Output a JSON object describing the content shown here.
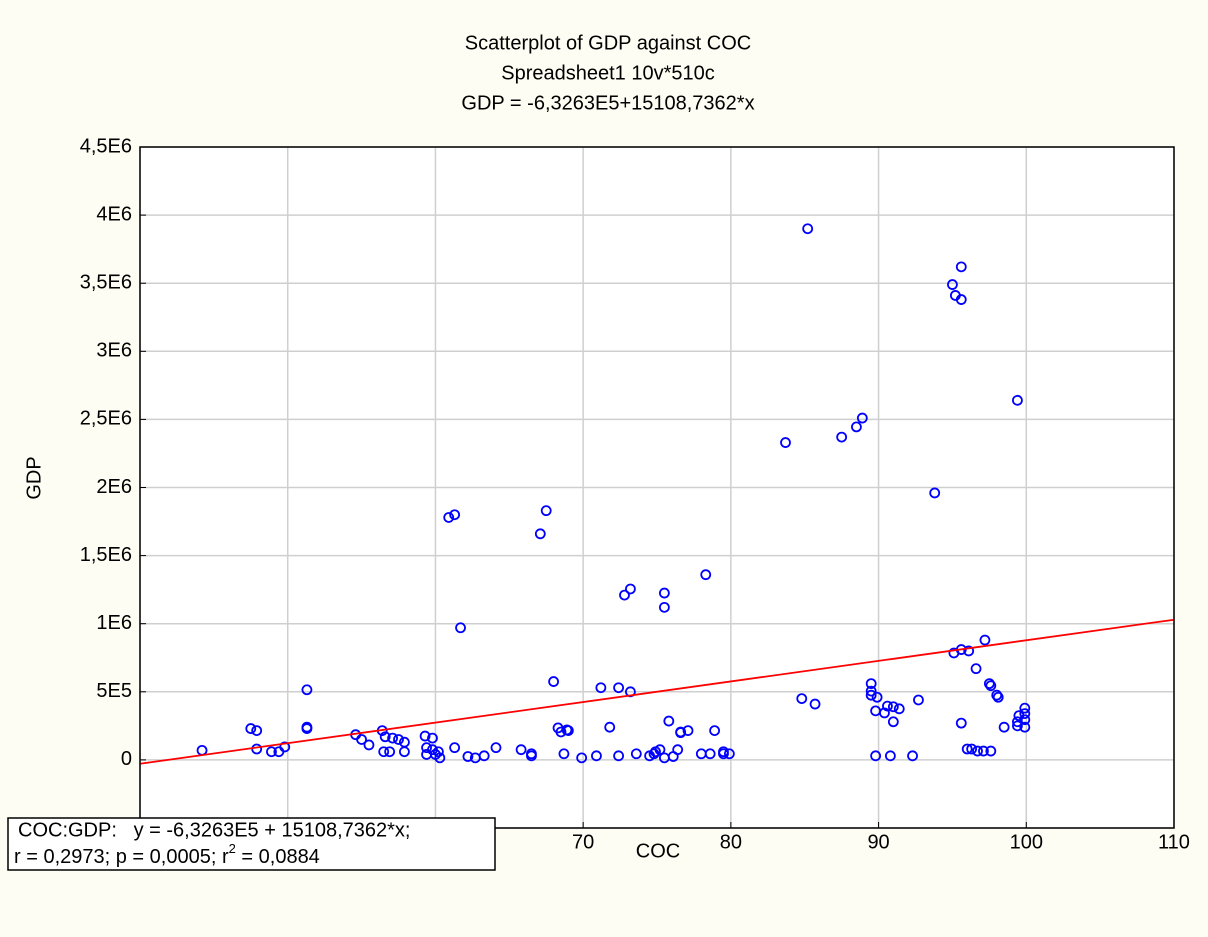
{
  "chart_data": {
    "type": "scatter",
    "title": "Scatterplot of GDP against COC",
    "subtitle": "Spreadsheet1 10v*510c",
    "equation": "GDP = -6,3263E5+15108,7362*x",
    "x_label": "COC",
    "y_label": "GDP",
    "color": "#0000ff",
    "fit": {
      "intercept": -632630,
      "slope": 15108.7362,
      "color": "#ff0000"
    },
    "stats_box": {
      "line1": "COC:GDP:   y = -6,3263E5 + 15108,7362*x;",
      "line2": [
        "r = 0,2973; p = 0,0005; r",
        "2",
        " = 0,0884"
      ]
    },
    "grid": true,
    "xlim": [
      40,
      110
    ],
    "xticks": [
      40,
      50,
      60,
      70,
      80,
      90,
      100,
      110
    ],
    "ylim": [
      -500000,
      4500000
    ],
    "yticks": [
      {
        "value": -500000,
        "label": "-5E5"
      },
      0,
      {
        "value": 500000,
        "label": "5E5"
      },
      {
        "value": 1000000,
        "label": "1E6"
      },
      {
        "value": 1500000,
        "label": "1,5E6"
      },
      {
        "value": 2000000,
        "label": "2E6"
      },
      {
        "value": 2500000,
        "label": "2,5E6"
      },
      {
        "value": 3000000,
        "label": "3E6"
      },
      {
        "value": 3500000,
        "label": "3,5E6"
      },
      {
        "value": 4000000,
        "label": "4E6"
      },
      {
        "value": 4500000,
        "label": "4,5E6"
      }
    ],
    "x": [
      44.2,
      47.5,
      47.9,
      47.9,
      48.9,
      49.4,
      49.8,
      51.3,
      51.3,
      51.3,
      54.6,
      55.0,
      55.5,
      56.4,
      56.6,
      56.5,
      56.9,
      57.1,
      57.5,
      57.9,
      57.9,
      59.3,
      59.8,
      59.4,
      59.8,
      59.4,
      60.0,
      60.2,
      60.3,
      60.9,
      61.3,
      61.7,
      61.3,
      62.2,
      62.7,
      63.3,
      64.1,
      65.8,
      66.5,
      66.5,
      67.1,
      67.5,
      68.0,
      68.3,
      68.5,
      68.9,
      69.0,
      68.7,
      69.9,
      70.9,
      71.2,
      71.8,
      72.4,
      72.4,
      72.8,
      73.2,
      73.2,
      73.6,
      74.5,
      74.8,
      74.9,
      75.2,
      75.5,
      75.5,
      75.5,
      75.8,
      76.1,
      76.4,
      76.6,
      76.6,
      77.1,
      78.3,
      78.0,
      78.6,
      78.9,
      79.5,
      79.5,
      79.9,
      83.7,
      84.8,
      85.2,
      85.7,
      87.5,
      88.5,
      88.9,
      89.5,
      89.5,
      89.5,
      89.9,
      89.8,
      89.8,
      90.4,
      90.6,
      91.0,
      91.0,
      90.8,
      91.4,
      92.3,
      92.7,
      93.8,
      95.0,
      95.2,
      95.6,
      95.6,
      95.1,
      95.6,
      96.1,
      95.6,
      96.0,
      96.3,
      96.6,
      96.7,
      97.1,
      97.2,
      97.6,
      97.5,
      97.6,
      98.0,
      98.1,
      98.5,
      99.4,
      99.5,
      99.4,
      99.4,
      99.9,
      99.9,
      99.9,
      99.9
    ],
    "values": [
      70000,
      230000,
      215000,
      80000,
      60000,
      60000,
      95000,
      515000,
      240000,
      230000,
      185000,
      150000,
      110000,
      215000,
      170000,
      60000,
      60000,
      160000,
      150000,
      130000,
      60000,
      175000,
      160000,
      90000,
      75000,
      40000,
      40000,
      60000,
      15000,
      1780000,
      1800000,
      970000,
      90000,
      25000,
      15000,
      30000,
      90000,
      75000,
      45000,
      30000,
      1660000,
      1830000,
      575000,
      235000,
      205000,
      220000,
      215000,
      45000,
      15000,
      30000,
      530000,
      240000,
      530000,
      30000,
      1210000,
      1255000,
      500000,
      45000,
      30000,
      45000,
      60000,
      75000,
      15000,
      1225000,
      1120000,
      285000,
      25000,
      75000,
      200000,
      205000,
      215000,
      1360000,
      45000,
      45000,
      215000,
      60000,
      45000,
      45000,
      2330000,
      450000,
      3900000,
      410000,
      2370000,
      2445000,
      2510000,
      560000,
      505000,
      475000,
      460000,
      360000,
      30000,
      345000,
      395000,
      390000,
      280000,
      30000,
      375000,
      30000,
      440000,
      1960000,
      3490000,
      3410000,
      3380000,
      3620000,
      785000,
      810000,
      800000,
      270000,
      80000,
      80000,
      670000,
      65000,
      65000,
      880000,
      65000,
      560000,
      545000,
      475000,
      460000,
      240000,
      2640000,
      325000,
      280000,
      250000,
      380000,
      340000,
      295000,
      240000
    ]
  }
}
